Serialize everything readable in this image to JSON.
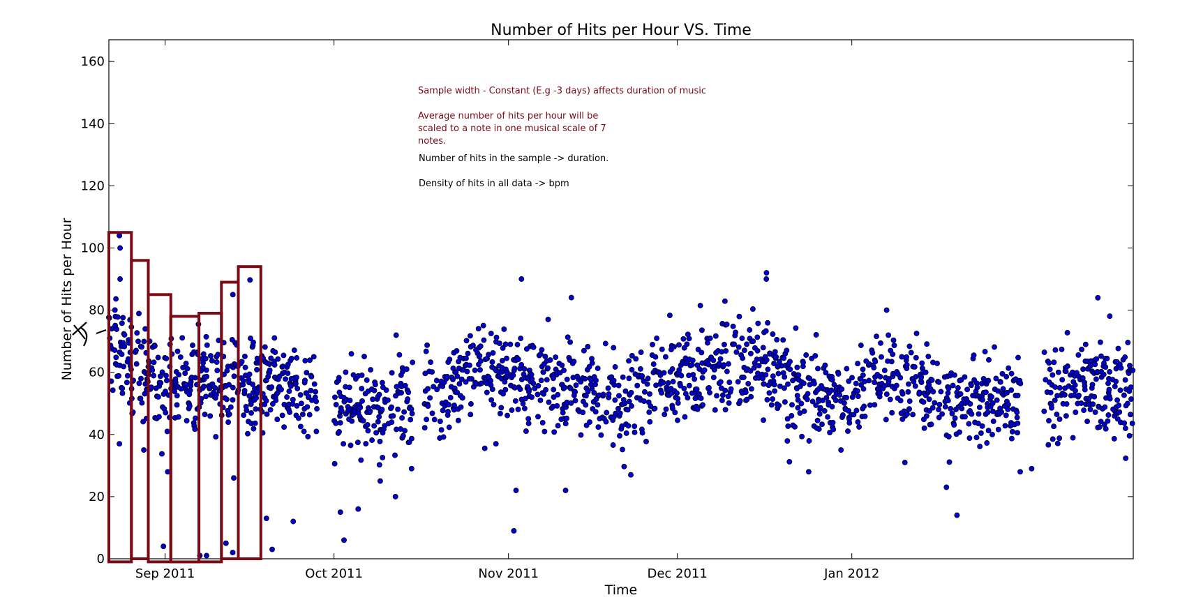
{
  "chart_data": {
    "type": "scatter",
    "title": "Number of Hits per Hour VS. Time",
    "xlabel": "Time",
    "ylabel": "Number of Hits per Hour",
    "x_axis_kind": "date",
    "xlim": [
      "2011-08-22",
      "2012-02-20"
    ],
    "ylim": [
      0,
      167
    ],
    "yticks": [
      0,
      20,
      40,
      60,
      80,
      100,
      120,
      140,
      160
    ],
    "xticks": [
      {
        "date": "2011-09-01",
        "label": "Sep 2011"
      },
      {
        "date": "2011-10-01",
        "label": "Oct 2011"
      },
      {
        "date": "2011-11-01",
        "label": "Nov 2011"
      },
      {
        "date": "2011-12-01",
        "label": "Dec 2011"
      },
      {
        "date": "2012-01-01",
        "label": "Jan 2012"
      }
    ],
    "grid": false,
    "marker_color": "#0000cc",
    "marker_edge_color": "#000000",
    "data_ranges": [
      {
        "start": "2011-08-22",
        "end": "2011-09-27"
      },
      {
        "start": "2011-10-01",
        "end": "2011-10-14"
      },
      {
        "start": "2011-10-17",
        "end": "2011-12-31"
      },
      {
        "start": "2012-01-01",
        "end": "2012-01-30"
      },
      {
        "start": "2012-02-04",
        "end": "2012-02-19"
      }
    ],
    "trend": [
      {
        "date": "2011-08-22",
        "value": 70
      },
      {
        "date": "2011-08-26",
        "value": 63
      },
      {
        "date": "2011-09-01",
        "value": 56
      },
      {
        "date": "2011-09-08",
        "value": 58
      },
      {
        "date": "2011-09-15",
        "value": 57
      },
      {
        "date": "2011-09-22",
        "value": 55
      },
      {
        "date": "2011-10-01",
        "value": 50
      },
      {
        "date": "2011-10-08",
        "value": 48
      },
      {
        "date": "2011-10-14",
        "value": 52
      },
      {
        "date": "2011-10-20",
        "value": 53
      },
      {
        "date": "2011-10-26",
        "value": 62
      },
      {
        "date": "2011-11-01",
        "value": 60
      },
      {
        "date": "2011-11-08",
        "value": 56
      },
      {
        "date": "2011-11-15",
        "value": 54
      },
      {
        "date": "2011-11-22",
        "value": 52
      },
      {
        "date": "2011-12-01",
        "value": 57
      },
      {
        "date": "2011-12-08",
        "value": 62
      },
      {
        "date": "2011-12-15",
        "value": 64
      },
      {
        "date": "2011-12-22",
        "value": 55
      },
      {
        "date": "2011-12-29",
        "value": 50
      },
      {
        "date": "2012-01-05",
        "value": 58
      },
      {
        "date": "2012-01-12",
        "value": 56
      },
      {
        "date": "2012-01-20",
        "value": 50
      },
      {
        "date": "2012-02-04",
        "value": 52
      },
      {
        "date": "2012-02-12",
        "value": 55
      },
      {
        "date": "2012-02-20",
        "value": 54
      }
    ],
    "outliers": [
      {
        "date": "2011-08-24",
        "value": 104
      },
      {
        "date": "2011-08-24",
        "value": 100
      },
      {
        "date": "2011-08-24",
        "value": 90
      },
      {
        "date": "2011-08-24",
        "value": 37
      },
      {
        "date": "2011-08-28",
        "value": 35
      },
      {
        "date": "2011-09-01",
        "value": 4
      },
      {
        "date": "2011-09-07",
        "value": 1
      },
      {
        "date": "2011-09-08",
        "value": 1
      },
      {
        "date": "2011-09-12",
        "value": 5
      },
      {
        "date": "2011-09-13",
        "value": 2
      },
      {
        "date": "2011-09-13",
        "value": 26
      },
      {
        "date": "2011-09-13",
        "value": 85
      },
      {
        "date": "2011-09-19",
        "value": 13
      },
      {
        "date": "2011-09-20",
        "value": 3
      },
      {
        "date": "2011-09-24",
        "value": 12
      },
      {
        "date": "2011-10-02",
        "value": 15
      },
      {
        "date": "2011-10-03",
        "value": 6
      },
      {
        "date": "2011-10-05",
        "value": 16
      },
      {
        "date": "2011-10-09",
        "value": 25
      },
      {
        "date": "2011-10-12",
        "value": 20
      },
      {
        "date": "2011-10-15",
        "value": 29
      },
      {
        "date": "2011-10-30",
        "value": 37
      },
      {
        "date": "2011-11-02",
        "value": 22
      },
      {
        "date": "2011-11-02",
        "value": 9
      },
      {
        "date": "2011-11-03",
        "value": 90
      },
      {
        "date": "2011-11-11",
        "value": 22
      },
      {
        "date": "2011-11-23",
        "value": 27
      },
      {
        "date": "2011-12-17",
        "value": 92
      },
      {
        "date": "2011-12-17",
        "value": 90
      },
      {
        "date": "2012-01-07",
        "value": 80
      },
      {
        "date": "2012-01-18",
        "value": 23
      },
      {
        "date": "2012-01-20",
        "value": 14
      },
      {
        "date": "2012-02-02",
        "value": 29
      },
      {
        "date": "2012-02-14",
        "value": 84
      }
    ]
  },
  "annotations": {
    "line1": "Sample width - Constant (E.g -3 days) affects duration of music",
    "line2": "Average number of hits per hour will be",
    "line3": "scaled to a note in one musical scale of 7",
    "line4": "notes.",
    "line5": "Number of hits in the sample -> duration.",
    "line6": "Density of hits in all data -> bpm"
  },
  "sample_windows": [
    {
      "start": "2011-08-22",
      "end": "2011-08-26",
      "top": 105,
      "bottom": -1
    },
    {
      "start": "2011-08-26",
      "end": "2011-08-29",
      "top": 96,
      "bottom": 0
    },
    {
      "start": "2011-08-29",
      "end": "2011-09-02",
      "top": 85,
      "bottom": -1
    },
    {
      "start": "2011-09-02",
      "end": "2011-09-07",
      "top": 78,
      "bottom": -1
    },
    {
      "start": "2011-09-07",
      "end": "2011-09-11",
      "top": 79,
      "bottom": -1
    },
    {
      "start": "2011-09-11",
      "end": "2011-09-14",
      "top": 89,
      "bottom": 0
    },
    {
      "start": "2011-09-14",
      "end": "2011-09-18",
      "top": 94,
      "bottom": 0
    }
  ],
  "window_color": "#7a0b16"
}
